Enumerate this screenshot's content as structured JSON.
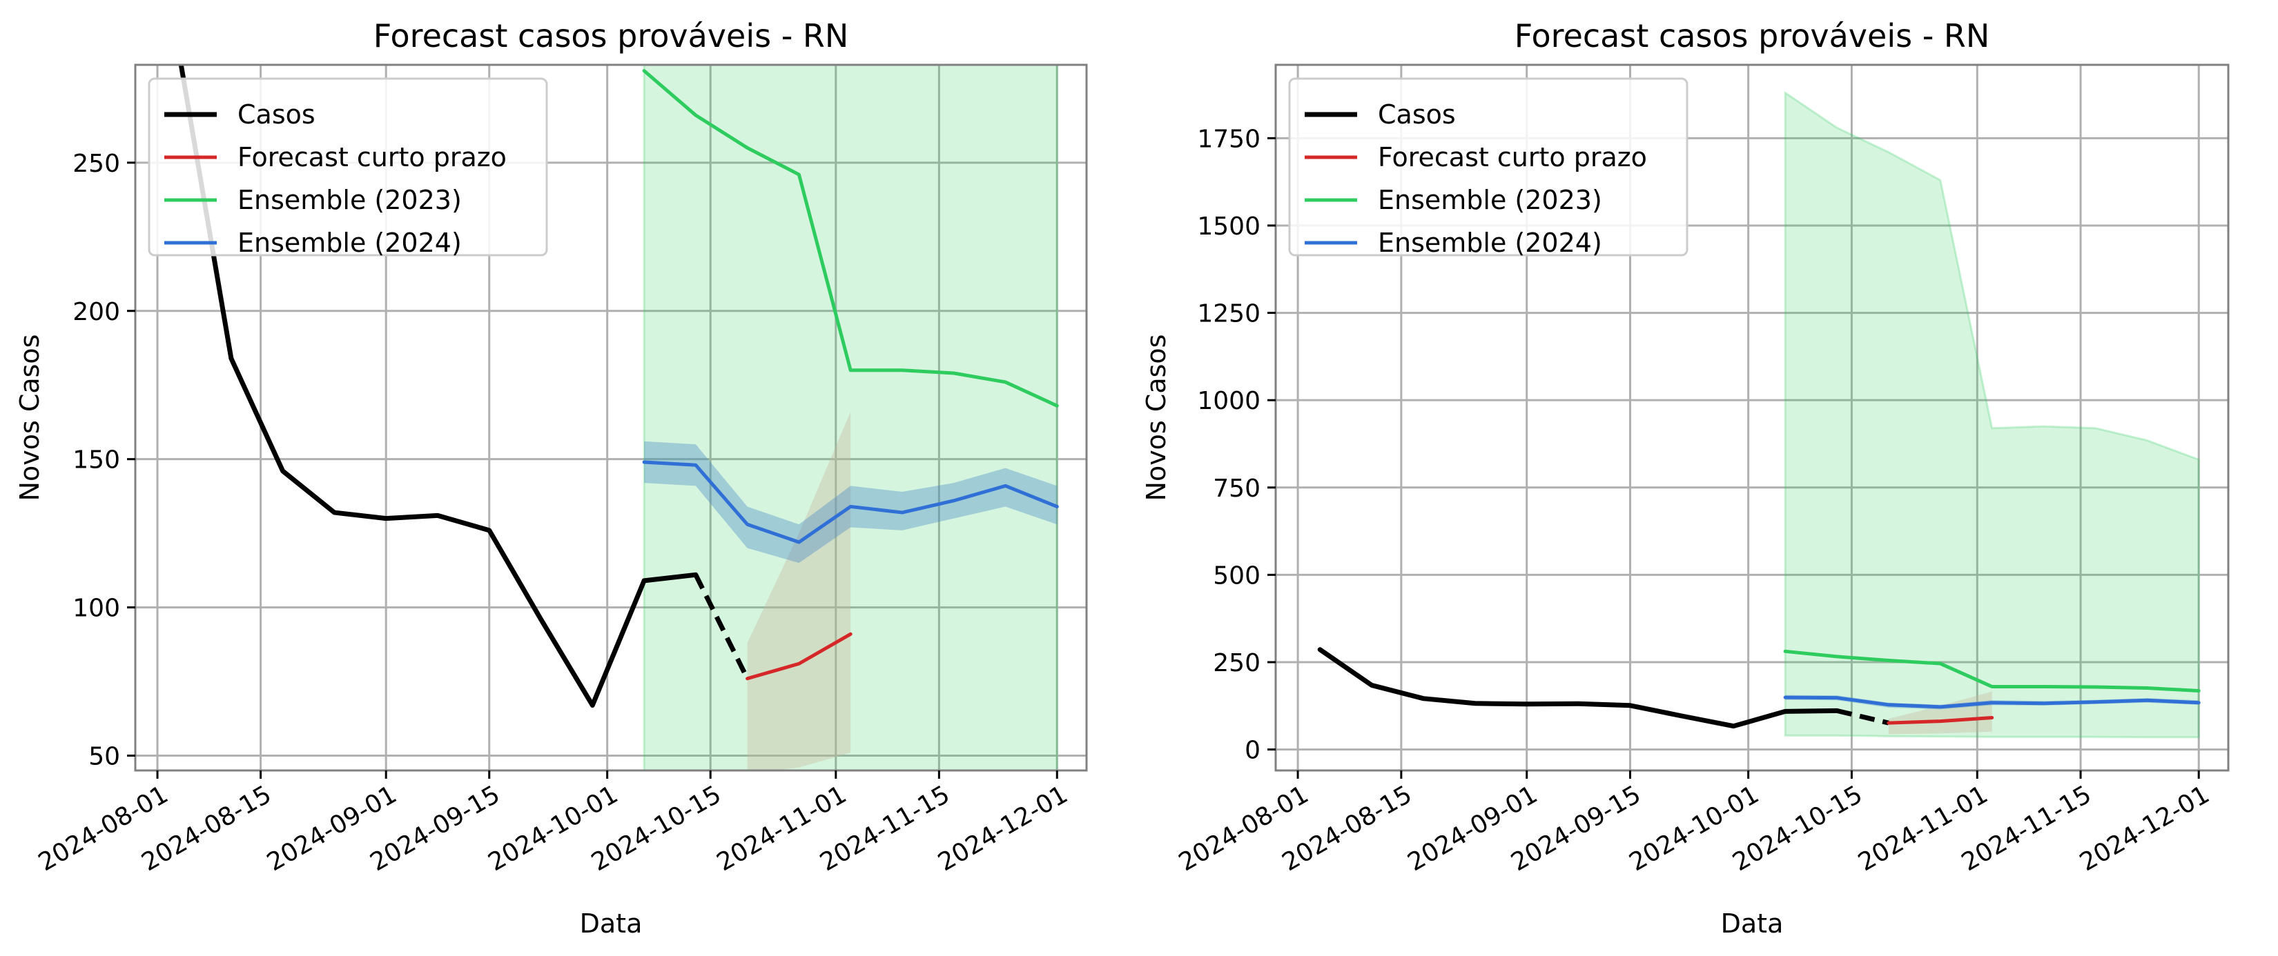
{
  "chart_data": [
    {
      "type": "line",
      "title": "Forecast casos prováveis - RN",
      "xlabel": "Data",
      "ylabel": "Novos Casos",
      "xlim": [
        "2024-07-29",
        "2024-12-05"
      ],
      "ylim": [
        45,
        283
      ],
      "x_ticks": [
        "2024-08-01",
        "2024-08-15",
        "2024-09-01",
        "2024-09-15",
        "2024-10-01",
        "2024-10-15",
        "2024-11-01",
        "2024-11-15",
        "2024-12-01"
      ],
      "y_ticks": [
        50,
        100,
        150,
        200,
        250
      ],
      "grid": true,
      "legend": {
        "placement": "upper-left",
        "entries": [
          {
            "label": "Casos",
            "color": "#000000"
          },
          {
            "label": "Forecast curto prazo",
            "color": "#d62728"
          },
          {
            "label": "Ensemble (2023)",
            "color": "#2ecc5e"
          },
          {
            "label": "Ensemble (2024)",
            "color": "#2f6fd6"
          }
        ]
      },
      "series": [
        {
          "name": "Casos",
          "color": "#000000",
          "x": [
            "2024-07-29",
            "2024-08-04",
            "2024-08-11",
            "2024-08-18",
            "2024-08-25",
            "2024-09-01",
            "2024-09-08",
            "2024-09-15",
            "2024-09-22",
            "2024-09-29",
            "2024-10-06",
            "2024-10-13"
          ],
          "y": [
            290,
            286,
            184,
            146,
            132,
            130,
            131,
            126,
            96,
            67,
            109,
            111
          ]
        },
        {
          "name": "Casos",
          "style": "dashed",
          "color": "#000000",
          "x": [
            "2024-10-13",
            "2024-10-20"
          ],
          "y": [
            111,
            76
          ]
        },
        {
          "name": "Forecast curto prazo",
          "color": "#d62728",
          "x": [
            "2024-10-20",
            "2024-10-27",
            "2024-11-03"
          ],
          "y": [
            76,
            81,
            91
          ],
          "band": {
            "color": "#c8b89f",
            "lower": [
              44,
              46,
              51
            ],
            "upper": [
              88,
              125,
              166
            ]
          }
        },
        {
          "name": "Ensemble (2023)",
          "color": "#2ecc5e",
          "x": [
            "2024-10-06",
            "2024-10-13",
            "2024-10-20",
            "2024-10-27",
            "2024-11-03",
            "2024-11-10",
            "2024-11-17",
            "2024-11-24",
            "2024-12-01"
          ],
          "y": [
            281,
            266,
            255,
            246,
            180,
            180,
            179,
            176,
            168
          ],
          "band": {
            "color": "#2ecc5e",
            "lower": [
              40,
              40,
              38,
              37,
              36,
              36,
              36,
              35,
              35
            ],
            "upper": [
              1880,
              1780,
              1710,
              1630,
              920,
              925,
              920,
              885,
              830
            ]
          }
        },
        {
          "name": "Ensemble (2024)",
          "color": "#2f6fd6",
          "x": [
            "2024-10-06",
            "2024-10-13",
            "2024-10-20",
            "2024-10-27",
            "2024-11-03",
            "2024-11-10",
            "2024-11-17",
            "2024-11-24",
            "2024-12-01"
          ],
          "y": [
            149,
            148,
            128,
            122,
            134,
            132,
            136,
            141,
            134
          ],
          "band": {
            "color": "#4a88c7",
            "lower": [
              142,
              141,
              120,
              115,
              127,
              126,
              130,
              134,
              128
            ],
            "upper": [
              156,
              155,
              134,
              128,
              141,
              139,
              142,
              147,
              141
            ]
          }
        }
      ]
    },
    {
      "type": "line",
      "title": "Forecast casos prováveis - RN",
      "xlabel": "Data",
      "ylabel": "Novos Casos",
      "xlim": [
        "2024-07-29",
        "2024-12-05"
      ],
      "ylim": [
        -60,
        1960
      ],
      "x_ticks": [
        "2024-08-01",
        "2024-08-15",
        "2024-09-01",
        "2024-09-15",
        "2024-10-01",
        "2024-10-15",
        "2024-11-01",
        "2024-11-15",
        "2024-12-01"
      ],
      "y_ticks": [
        0,
        250,
        500,
        750,
        1000,
        1250,
        1500,
        1750
      ],
      "grid": true,
      "legend": {
        "placement": "upper-left",
        "entries": [
          {
            "label": "Casos",
            "color": "#000000"
          },
          {
            "label": "Forecast curto prazo",
            "color": "#d62728"
          },
          {
            "label": "Ensemble (2023)",
            "color": "#2ecc5e"
          },
          {
            "label": "Ensemble (2024)",
            "color": "#2f6fd6"
          }
        ]
      },
      "series": [
        {
          "name": "Casos",
          "color": "#000000",
          "x": [
            "2024-08-04",
            "2024-08-11",
            "2024-08-18",
            "2024-08-25",
            "2024-09-01",
            "2024-09-08",
            "2024-09-15",
            "2024-09-22",
            "2024-09-29",
            "2024-10-06",
            "2024-10-13"
          ],
          "y": [
            286,
            184,
            146,
            132,
            130,
            131,
            126,
            96,
            67,
            109,
            111
          ]
        },
        {
          "name": "Casos",
          "style": "dashed",
          "color": "#000000",
          "x": [
            "2024-10-13",
            "2024-10-20"
          ],
          "y": [
            111,
            76
          ]
        },
        {
          "name": "Forecast curto prazo",
          "color": "#d62728",
          "x": [
            "2024-10-20",
            "2024-10-27",
            "2024-11-03"
          ],
          "y": [
            76,
            81,
            91
          ],
          "band": {
            "color": "#c8b89f",
            "lower": [
              44,
              46,
              51
            ],
            "upper": [
              88,
              125,
              166
            ]
          }
        },
        {
          "name": "Ensemble (2023)",
          "color": "#2ecc5e",
          "x": [
            "2024-10-06",
            "2024-10-13",
            "2024-10-20",
            "2024-10-27",
            "2024-11-03",
            "2024-11-10",
            "2024-11-17",
            "2024-11-24",
            "2024-12-01"
          ],
          "y": [
            281,
            266,
            255,
            246,
            180,
            180,
            179,
            176,
            168
          ],
          "band": {
            "color": "#2ecc5e",
            "lower": [
              40,
              40,
              38,
              37,
              36,
              36,
              36,
              35,
              35
            ],
            "upper": [
              1880,
              1780,
              1710,
              1630,
              920,
              925,
              920,
              885,
              830
            ]
          }
        },
        {
          "name": "Ensemble (2024)",
          "color": "#2f6fd6",
          "x": [
            "2024-10-06",
            "2024-10-13",
            "2024-10-20",
            "2024-10-27",
            "2024-11-03",
            "2024-11-10",
            "2024-11-17",
            "2024-11-24",
            "2024-12-01"
          ],
          "y": [
            149,
            148,
            128,
            122,
            134,
            132,
            136,
            141,
            134
          ],
          "band": {
            "color": "#4a88c7",
            "lower": [
              142,
              141,
              120,
              115,
              127,
              126,
              130,
              134,
              128
            ],
            "upper": [
              156,
              155,
              134,
              128,
              141,
              139,
              142,
              147,
              141
            ]
          }
        }
      ]
    }
  ]
}
